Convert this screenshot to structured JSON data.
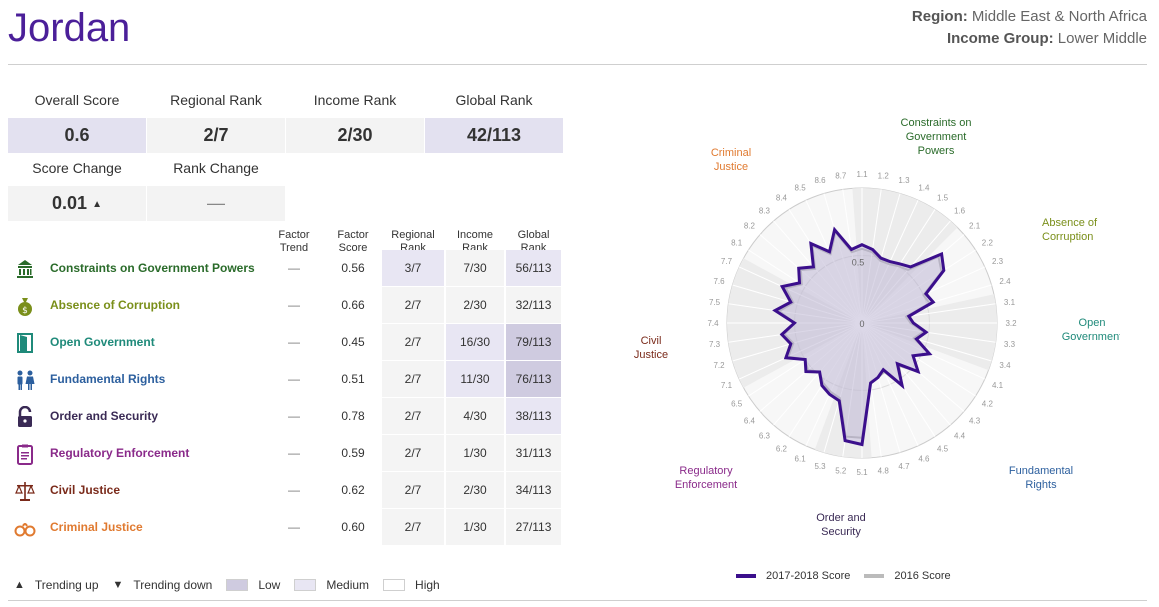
{
  "country": "Jordan",
  "meta": {
    "region_label": "Region:",
    "region_value": "Middle East & North Africa",
    "income_label": "Income Group:",
    "income_value": "Lower Middle"
  },
  "summary": {
    "overall_label": "Overall Score",
    "overall_value": "0.6",
    "regional_label": "Regional Rank",
    "regional_value": "2/7",
    "income_label": "Income Rank",
    "income_value": "2/30",
    "global_label": "Global Rank",
    "global_value": "42/113",
    "score_change_label": "Score Change",
    "score_change_value": "0.01",
    "rank_change_label": "Rank Change",
    "rank_change_value": "—"
  },
  "table": {
    "headers": [
      "Factor Trend",
      "Factor Score",
      "Regional Rank",
      "Income Rank",
      "Global Rank"
    ],
    "rows": [
      {
        "name": "Constraints on Government Powers",
        "icon": "capitol-icon",
        "color": "#2a6b2a",
        "trend": "—",
        "score": "0.56",
        "regional": "3/7",
        "income": "7/30",
        "global": "56/113",
        "lvl": [
          "lvl-med",
          "lvl-high",
          "lvl-med"
        ]
      },
      {
        "name": "Absence of Corruption",
        "icon": "money-bag-icon",
        "color": "#7a8f1a",
        "trend": "—",
        "score": "0.66",
        "regional": "2/7",
        "income": "2/30",
        "global": "32/113",
        "lvl": [
          "lvl-high",
          "lvl-high",
          "lvl-high"
        ]
      },
      {
        "name": "Open Government",
        "icon": "open-door-icon",
        "color": "#1f8a7a",
        "trend": "—",
        "score": "0.45",
        "regional": "2/7",
        "income": "16/30",
        "global": "79/113",
        "lvl": [
          "lvl-high",
          "lvl-med",
          "lvl-low"
        ]
      },
      {
        "name": "Fundamental Rights",
        "icon": "people-icon",
        "color": "#2c5f9e",
        "trend": "—",
        "score": "0.51",
        "regional": "2/7",
        "income": "11/30",
        "global": "76/113",
        "lvl": [
          "lvl-high",
          "lvl-med",
          "lvl-low"
        ]
      },
      {
        "name": "Order and Security",
        "icon": "padlock-icon",
        "color": "#3a2a55",
        "trend": "—",
        "score": "0.78",
        "regional": "2/7",
        "income": "4/30",
        "global": "38/113",
        "lvl": [
          "lvl-high",
          "lvl-high",
          "lvl-med"
        ]
      },
      {
        "name": "Regulatory Enforcement",
        "icon": "clipboard-icon",
        "color": "#8a2a8a",
        "trend": "—",
        "score": "0.59",
        "regional": "2/7",
        "income": "1/30",
        "global": "31/113",
        "lvl": [
          "lvl-high",
          "lvl-high",
          "lvl-high"
        ]
      },
      {
        "name": "Civil Justice",
        "icon": "scales-icon",
        "color": "#7a2a1a",
        "trend": "—",
        "score": "0.62",
        "regional": "2/7",
        "income": "2/30",
        "global": "34/113",
        "lvl": [
          "lvl-high",
          "lvl-high",
          "lvl-high"
        ]
      },
      {
        "name": "Criminal Justice",
        "icon": "handcuffs-icon",
        "color": "#e07a30",
        "trend": "—",
        "score": "0.60",
        "regional": "2/7",
        "income": "1/30",
        "global": "27/113",
        "lvl": [
          "lvl-high",
          "lvl-high",
          "lvl-high"
        ]
      }
    ]
  },
  "legend": {
    "up": "Trending up",
    "down": "Trending down",
    "low": "Low",
    "medium": "Medium",
    "high": "High",
    "colors": {
      "low": "#cfcbe0",
      "medium": "#e8e6f3",
      "high": "#f4f4f4"
    }
  },
  "chart_data": {
    "type": "radar",
    "range": [
      0,
      1
    ],
    "center_label": "0",
    "inner_label": "0.5",
    "axes": [
      "1.1",
      "1.2",
      "1.3",
      "1.4",
      "1.5",
      "1.6",
      "2.1",
      "2.2",
      "2.3",
      "2.4",
      "3.1",
      "3.2",
      "3.3",
      "3.4",
      "4.1",
      "4.2",
      "4.3",
      "4.4",
      "4.5",
      "4.6",
      "4.7",
      "4.8",
      "5.1",
      "5.2",
      "5.3",
      "6.1",
      "6.2",
      "6.3",
      "6.4",
      "6.5",
      "7.1",
      "7.2",
      "7.3",
      "7.4",
      "7.5",
      "7.6",
      "7.7",
      "8.1",
      "8.2",
      "8.3",
      "8.4",
      "8.5",
      "8.6",
      "8.7"
    ],
    "groups": [
      {
        "label": "Constraints on Government Powers",
        "color": "#2a6b2a",
        "from": "1.1",
        "to": "1.6"
      },
      {
        "label": "Absence of Corruption",
        "color": "#7a8f1a",
        "from": "2.1",
        "to": "2.4"
      },
      {
        "label": "Open Government",
        "color": "#1f8a7a",
        "from": "3.1",
        "to": "3.4"
      },
      {
        "label": "Fundamental Rights",
        "color": "#2c5f9e",
        "from": "4.1",
        "to": "4.8"
      },
      {
        "label": "Order and Security",
        "color": "#3a2a55",
        "from": "5.1",
        "to": "5.3"
      },
      {
        "label": "Regulatory Enforcement",
        "color": "#8a2a8a",
        "from": "6.1",
        "to": "6.5"
      },
      {
        "label": "Civil Justice",
        "color": "#7a2a1a",
        "from": "7.1",
        "to": "7.7"
      },
      {
        "label": "Criminal Justice",
        "color": "#e07a30",
        "from": "8.1",
        "to": "8.7"
      }
    ],
    "series": [
      {
        "name": "2017-2018 Score",
        "color": "#3b0f8c",
        "values": [
          0.58,
          0.55,
          0.5,
          0.5,
          0.52,
          0.55,
          0.78,
          0.72,
          0.52,
          0.55,
          0.35,
          0.38,
          0.48,
          0.42,
          0.55,
          0.45,
          0.55,
          0.4,
          0.55,
          0.38,
          0.42,
          0.45,
          0.9,
          0.88,
          0.6,
          0.58,
          0.55,
          0.48,
          0.55,
          0.5,
          0.62,
          0.55,
          0.6,
          0.5,
          0.65,
          0.55,
          0.65,
          0.55,
          0.62,
          0.55,
          0.7,
          0.58,
          0.72,
          0.55
        ]
      },
      {
        "name": "2016 Score",
        "color": "#bbbbbb",
        "values": [
          0.55,
          0.53,
          0.48,
          0.48,
          0.5,
          0.52,
          0.75,
          0.7,
          0.5,
          0.52,
          0.33,
          0.36,
          0.46,
          0.4,
          0.55,
          0.45,
          0.55,
          0.42,
          0.55,
          0.4,
          0.42,
          0.44,
          0.85,
          0.85,
          0.58,
          0.56,
          0.53,
          0.48,
          0.53,
          0.5,
          0.6,
          0.53,
          0.58,
          0.5,
          0.62,
          0.53,
          0.62,
          0.53,
          0.6,
          0.53,
          0.68,
          0.56,
          0.7,
          0.53
        ]
      }
    ]
  }
}
